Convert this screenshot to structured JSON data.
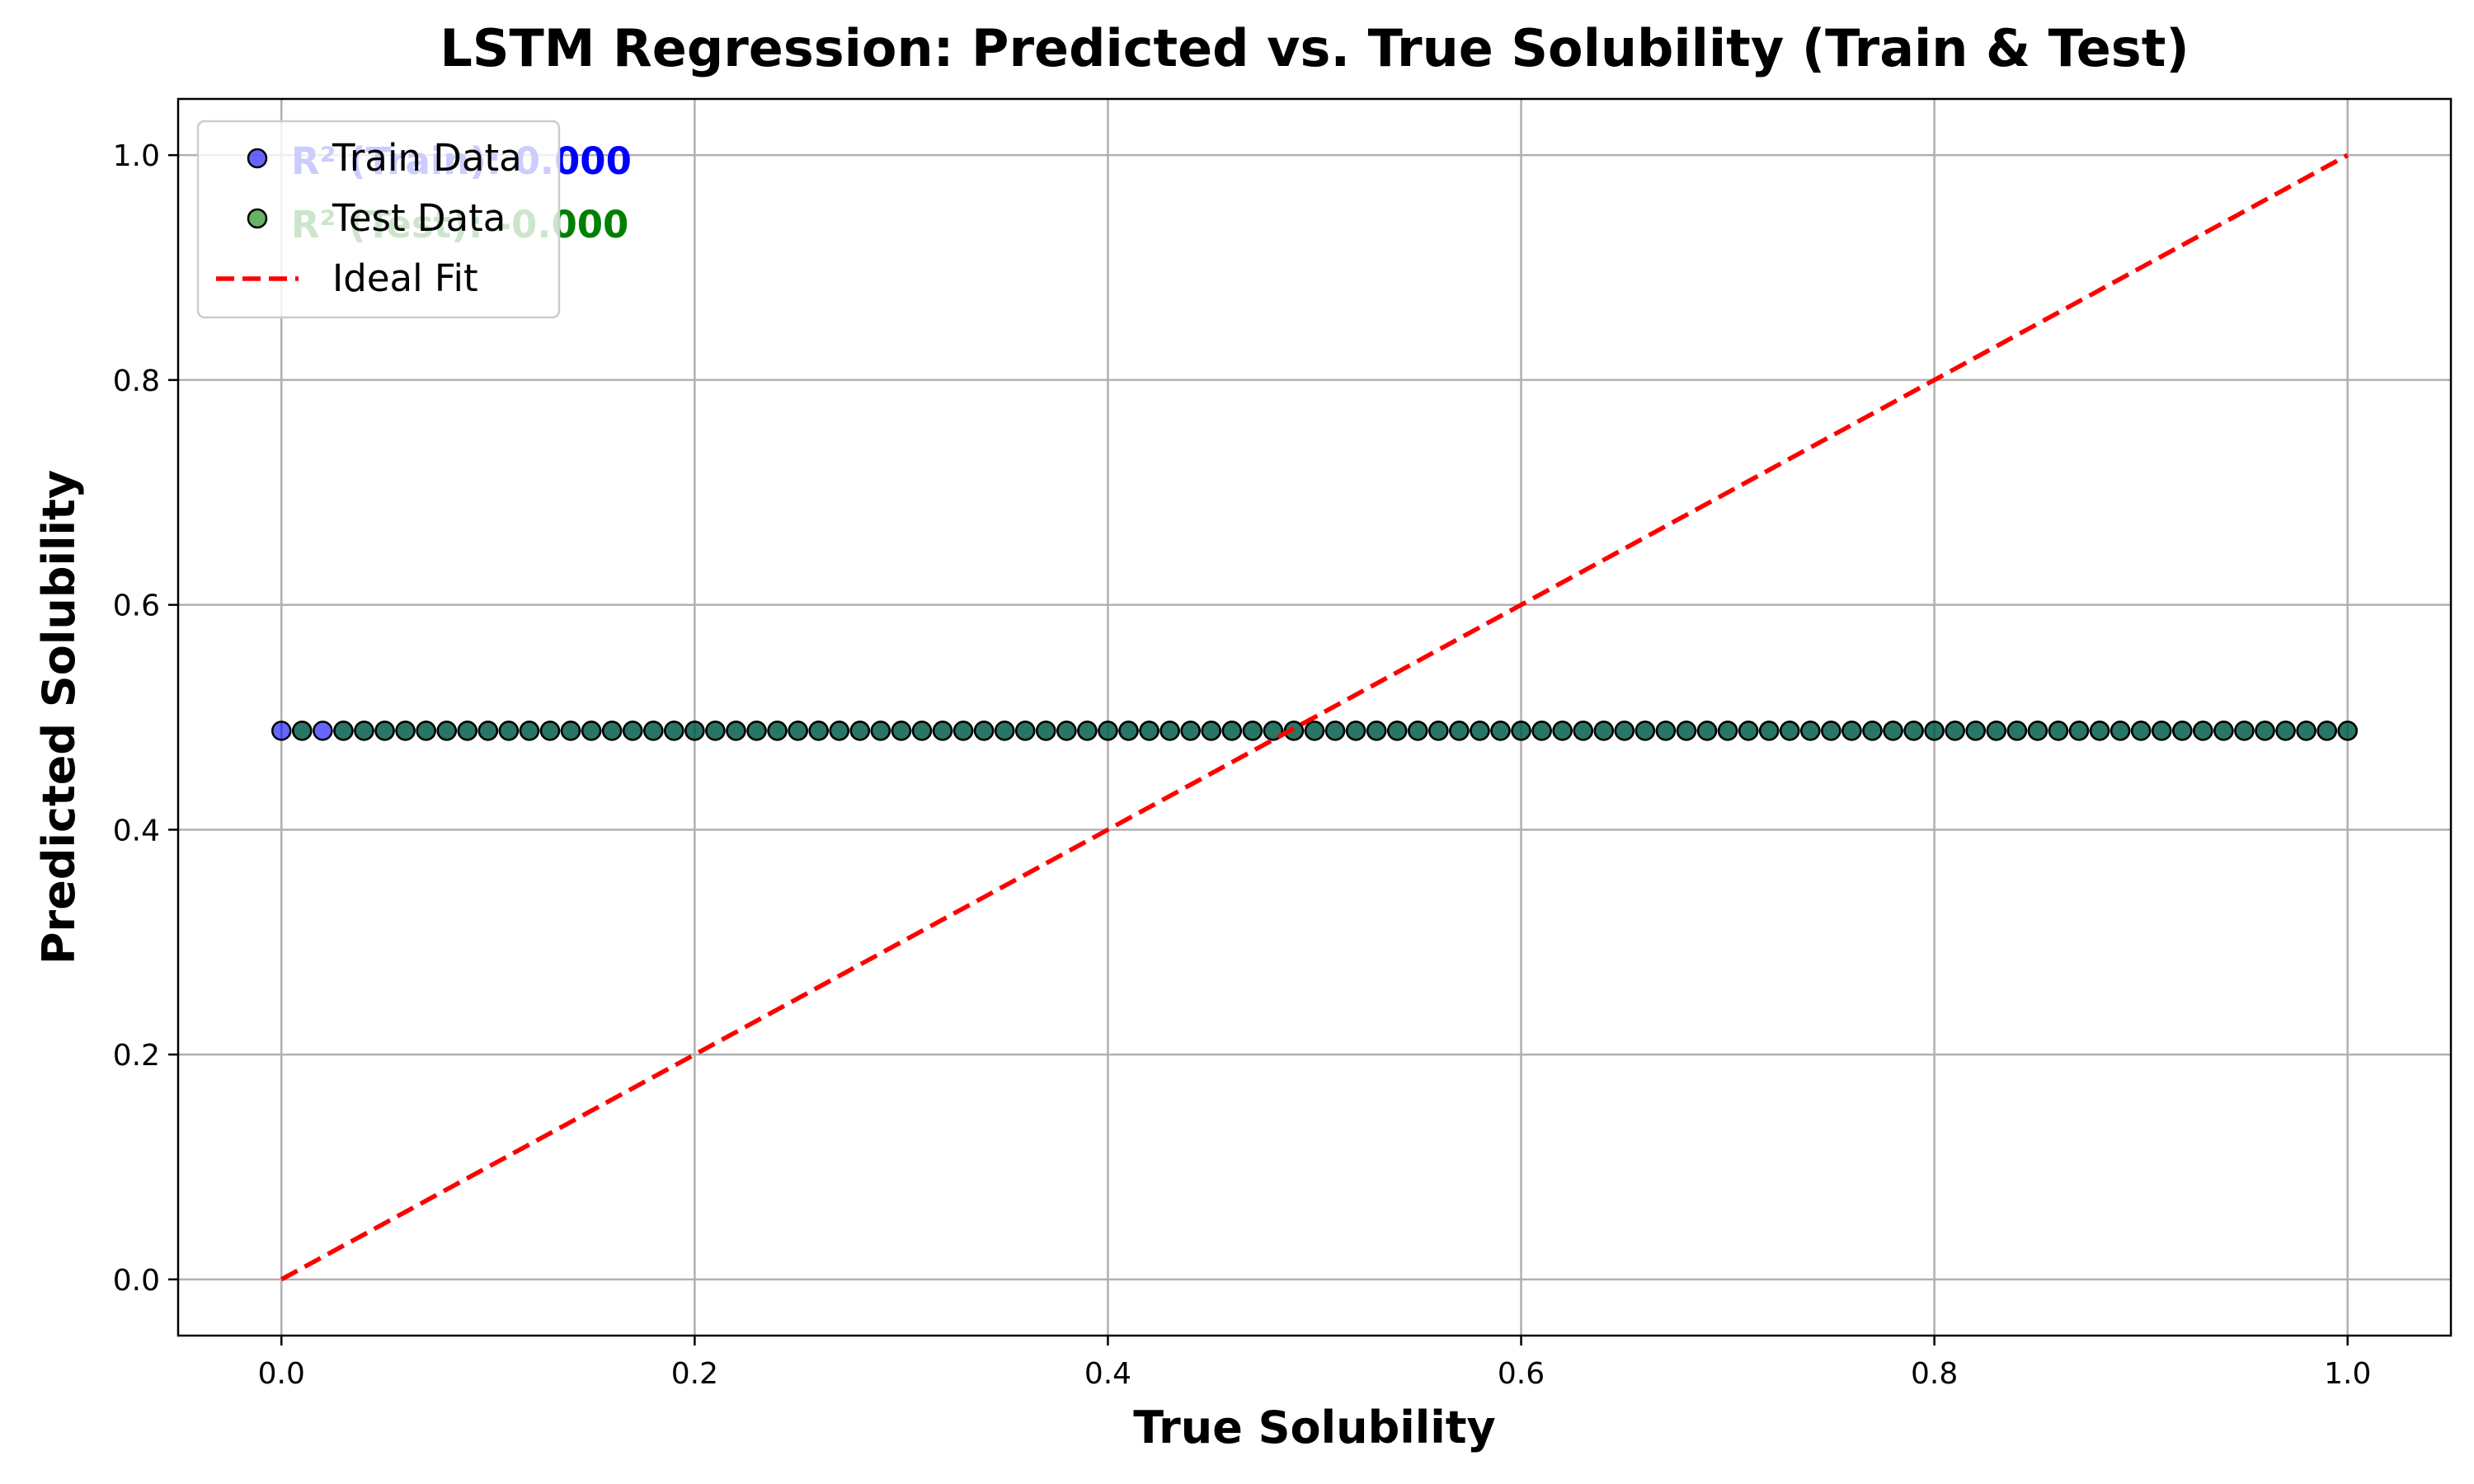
{
  "chart_data": {
    "type": "scatter",
    "title": "LSTM Regression: Predicted vs. True Solubility (Train & Test)",
    "xlabel": "True Solubility",
    "ylabel": "Predicted Solubility",
    "xlim": [
      -0.05,
      1.05
    ],
    "ylim": [
      -0.05,
      1.05
    ],
    "xticks": [
      "0.0",
      "0.2",
      "0.4",
      "0.6",
      "0.8",
      "1.0"
    ],
    "yticks": [
      "0.0",
      "0.2",
      "0.4",
      "0.6",
      "0.8",
      "1.0"
    ],
    "grid": true,
    "legend_position": "upper-left",
    "series": [
      {
        "name": "Train Data",
        "color": "#0000ff",
        "x": [
          0.0,
          0.01,
          0.02,
          0.03,
          0.04,
          0.05,
          0.06,
          0.07,
          0.08,
          0.09,
          0.1,
          0.11,
          0.12,
          0.13,
          0.14,
          0.15,
          0.16,
          0.17,
          0.18,
          0.19,
          0.2,
          0.21,
          0.22,
          0.23,
          0.24,
          0.25,
          0.26,
          0.27,
          0.28,
          0.29,
          0.3,
          0.31,
          0.32,
          0.33,
          0.34,
          0.35,
          0.36,
          0.37,
          0.38,
          0.39,
          0.4,
          0.41,
          0.42,
          0.43,
          0.44,
          0.45,
          0.46,
          0.47,
          0.48,
          0.49,
          0.5,
          0.51,
          0.52,
          0.53,
          0.54,
          0.55,
          0.56,
          0.57,
          0.58,
          0.59,
          0.6,
          0.61,
          0.62,
          0.63,
          0.64,
          0.65,
          0.66,
          0.67,
          0.68,
          0.69,
          0.7,
          0.71,
          0.72,
          0.73,
          0.74,
          0.75,
          0.76,
          0.77,
          0.78,
          0.79,
          0.8,
          0.81,
          0.82,
          0.83,
          0.84,
          0.85,
          0.86,
          0.87,
          0.88,
          0.89,
          0.9,
          0.91,
          0.92,
          0.93,
          0.94,
          0.95,
          0.96,
          0.97,
          0.98,
          0.99,
          1.0
        ],
        "y_constant": 0.488
      },
      {
        "name": "Test Data",
        "color": "#008000",
        "x": [
          0.01,
          0.03,
          0.04,
          0.05,
          0.06,
          0.07,
          0.08,
          0.09,
          0.1,
          0.11,
          0.12,
          0.13,
          0.14,
          0.15,
          0.16,
          0.17,
          0.18,
          0.19,
          0.2,
          0.21,
          0.22,
          0.23,
          0.24,
          0.25,
          0.26,
          0.27,
          0.28,
          0.29,
          0.3,
          0.31,
          0.32,
          0.33,
          0.34,
          0.35,
          0.36,
          0.37,
          0.38,
          0.39,
          0.4,
          0.41,
          0.42,
          0.43,
          0.44,
          0.45,
          0.46,
          0.47,
          0.48,
          0.49,
          0.5,
          0.51,
          0.52,
          0.53,
          0.54,
          0.55,
          0.56,
          0.57,
          0.58,
          0.59,
          0.6,
          0.61,
          0.62,
          0.63,
          0.64,
          0.65,
          0.66,
          0.67,
          0.68,
          0.69,
          0.7,
          0.71,
          0.72,
          0.73,
          0.74,
          0.75,
          0.76,
          0.77,
          0.78,
          0.79,
          0.8,
          0.81,
          0.82,
          0.83,
          0.84,
          0.85,
          0.86,
          0.87,
          0.88,
          0.89,
          0.9,
          0.91,
          0.92,
          0.93,
          0.94,
          0.95,
          0.96,
          0.97,
          0.98,
          0.99,
          1.0
        ],
        "y_constant": 0.488
      },
      {
        "name": "Ideal Fit",
        "color": "#ff0000",
        "style": "dashed",
        "x": [
          0,
          1
        ],
        "y": [
          0,
          1
        ]
      }
    ],
    "annotations": [
      {
        "text": "R² (Train): 0.000",
        "color": "#0000ff"
      },
      {
        "text": "R² (Test): -0.000",
        "color": "#008000"
      }
    ]
  }
}
